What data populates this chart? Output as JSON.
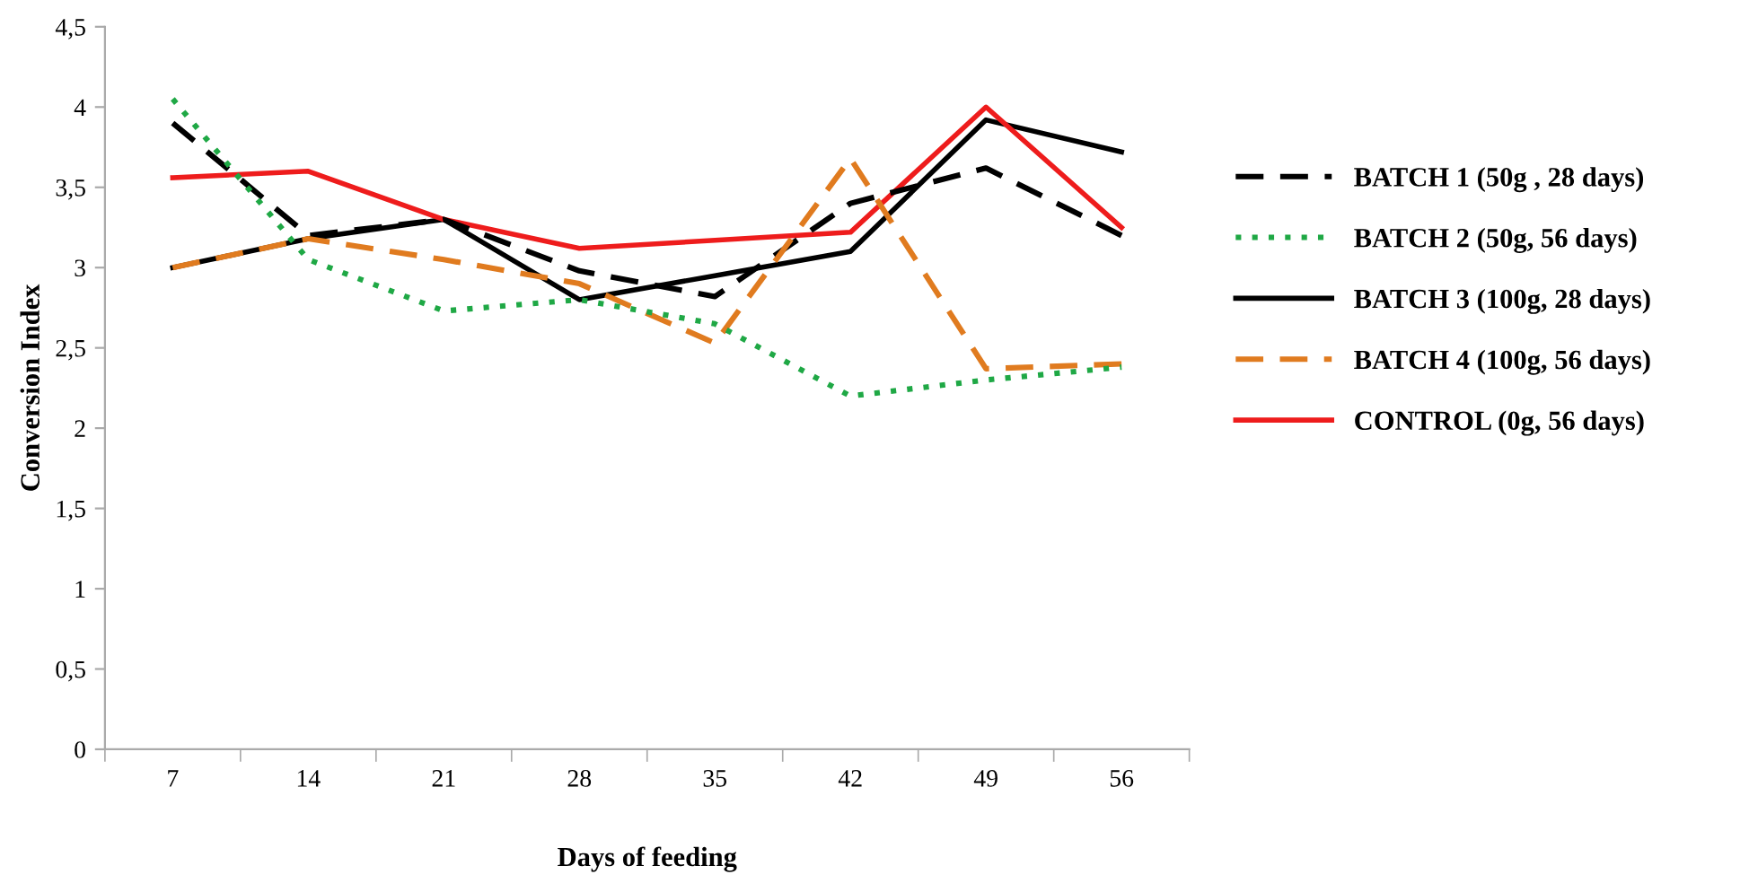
{
  "chart_data": {
    "type": "line",
    "xlabel": "Days of feeding",
    "ylabel": "Conversion Index",
    "categories": [
      "7",
      "14",
      "21",
      "28",
      "35",
      "42",
      "49",
      "56"
    ],
    "series": [
      {
        "name": "BATCH 1 (50g , 28 days)",
        "color": "#000000",
        "line_style": "dashed",
        "values": [
          3.9,
          3.2,
          3.3,
          2.98,
          2.82,
          3.4,
          3.62,
          3.2
        ]
      },
      {
        "name": "BATCH 2 (50g, 56 days)",
        "color": "#1fa845",
        "line_style": "dotted",
        "values": [
          4.05,
          3.05,
          2.73,
          2.8,
          2.65,
          2.2,
          2.3,
          2.38
        ]
      },
      {
        "name": "BATCH 3 (100g, 28 days)",
        "color": "#000000",
        "line_style": "solid",
        "values": [
          3.0,
          3.18,
          3.3,
          2.8,
          2.95,
          3.1,
          3.92,
          3.72
        ]
      },
      {
        "name": "BATCH 4 (100g, 56 days)",
        "color": "#e07b1f",
        "line_style": "dashed",
        "values": [
          3.0,
          3.18,
          3.05,
          2.9,
          2.53,
          3.68,
          2.37,
          2.4
        ]
      },
      {
        "name": "CONTROL (0g, 56 days)",
        "color": "#ee1c1c",
        "line_style": "solid",
        "values": [
          3.56,
          3.6,
          3.3,
          3.12,
          3.17,
          3.22,
          4.0,
          3.25
        ]
      }
    ],
    "ylim": [
      0,
      4.5
    ],
    "yticks": [
      0,
      {
        "value": 0.5,
        "label": "0,5"
      },
      1,
      {
        "value": 1.5,
        "label": "1,5"
      },
      2,
      {
        "value": 2.5,
        "label": "2,5"
      },
      3,
      {
        "value": 3.5,
        "label": "3,5"
      },
      4,
      {
        "value": 4.5,
        "label": "4,5"
      }
    ],
    "grid": false,
    "legend": "right",
    "marker": "none"
  }
}
